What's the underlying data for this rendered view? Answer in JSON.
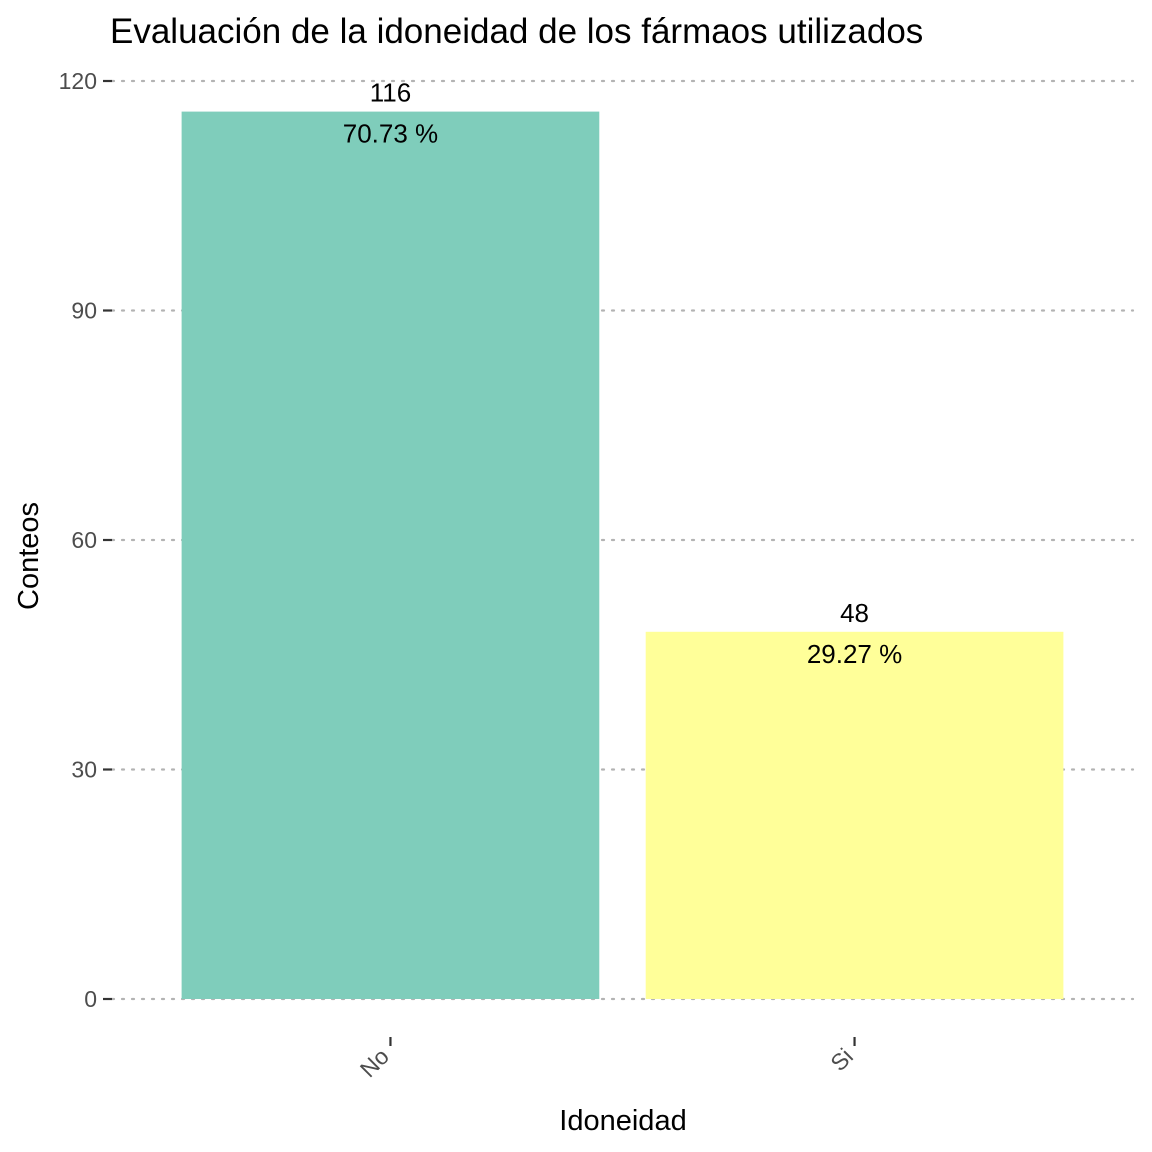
{
  "chart_data": {
    "type": "bar",
    "title": "Evaluación de la idoneidad de los fármaos utilizados",
    "xlabel": "Idoneidad",
    "ylabel": "Conteos",
    "categories": [
      "No",
      "Si"
    ],
    "values": [
      116,
      48
    ],
    "percent_labels": [
      "70.73 %",
      "29.27 %"
    ],
    "colors": [
      "#7fcdbb",
      "#ffff99"
    ],
    "ylim": [
      0,
      120
    ],
    "yticks": [
      0,
      30,
      60,
      90,
      120
    ],
    "grid": "horizontal dotted",
    "legend": "none"
  }
}
